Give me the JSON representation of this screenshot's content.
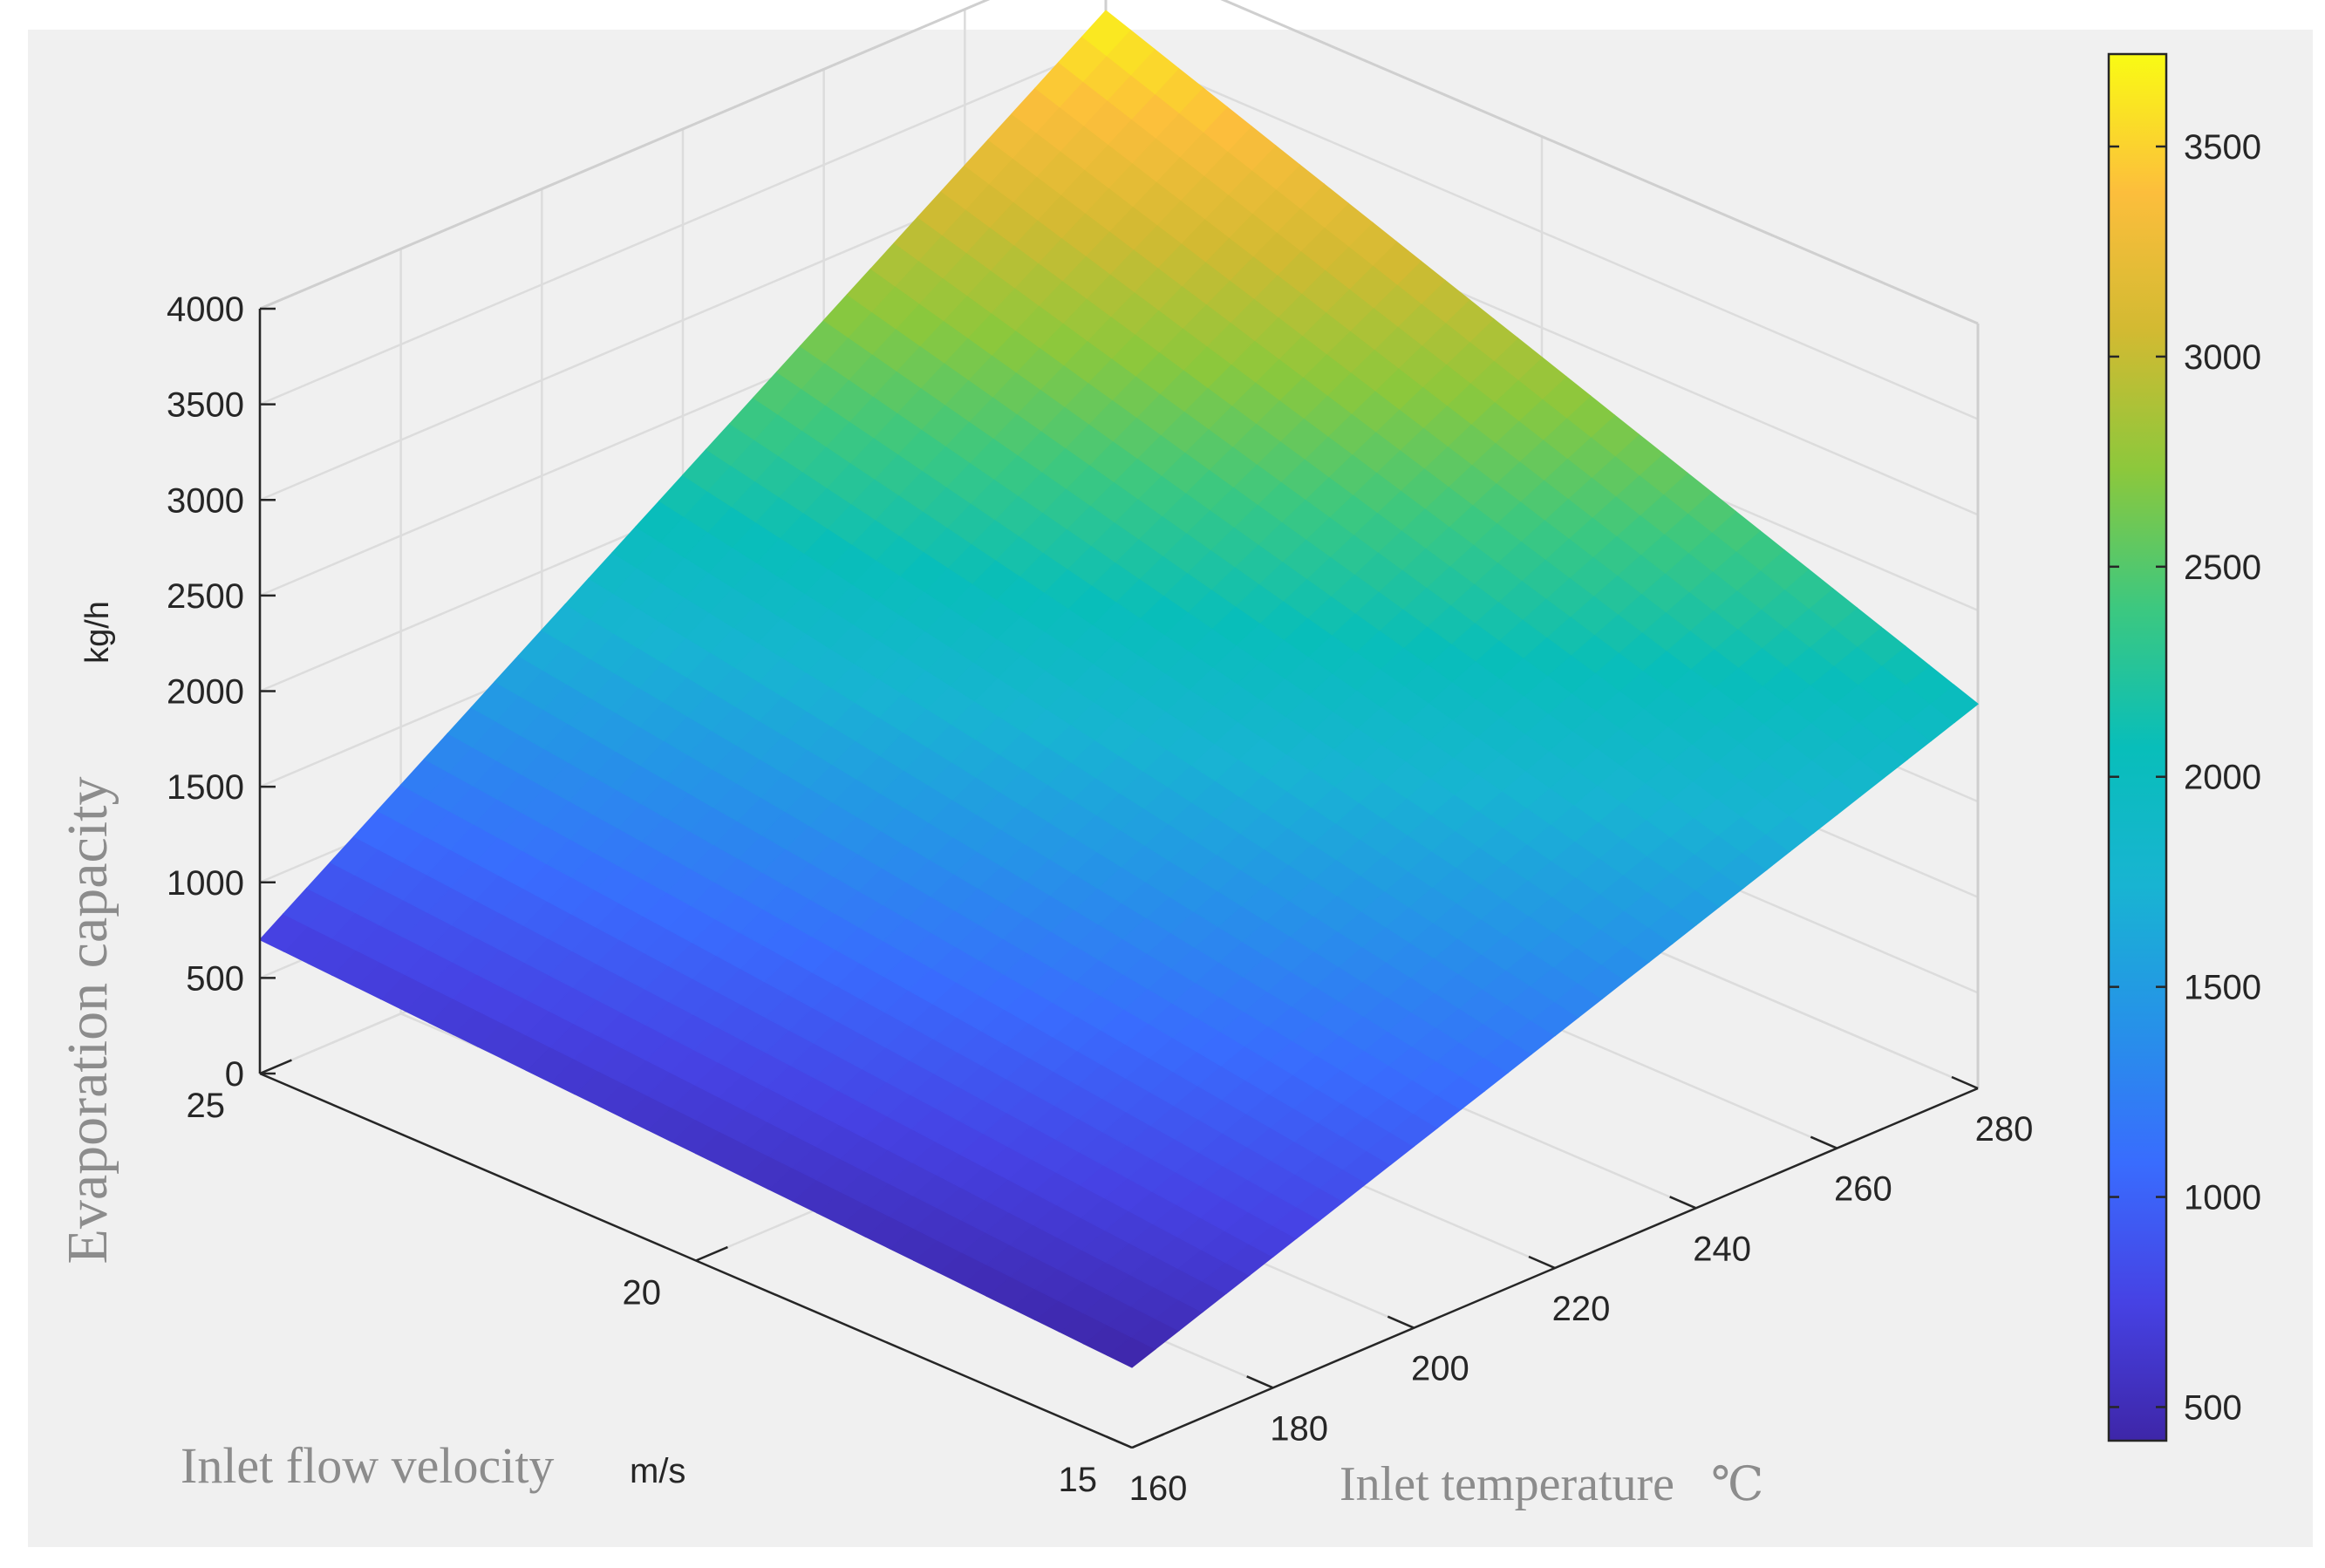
{
  "chart_data": {
    "type": "surface",
    "title": "",
    "xlabel": "Inlet temperature",
    "xlabel_unit": "℃",
    "ylabel": "Inlet flow velocity",
    "ylabel_unit": "m/s",
    "zlabel": "Evaporation capacity",
    "zlabel_unit": "kg/h",
    "x_ticks": [
      "160",
      "180",
      "200",
      "220",
      "240",
      "260",
      "280"
    ],
    "y_ticks": [
      "15",
      "20",
      "25"
    ],
    "z_ticks": [
      "0",
      "500",
      "1000",
      "1500",
      "2000",
      "2500",
      "3000",
      "3500",
      "4000"
    ],
    "xlim": [
      160,
      280
    ],
    "ylim": [
      15,
      25
    ],
    "zlim": [
      0,
      4000
    ],
    "surface_corners": [
      {
        "x": 160,
        "y": 15,
        "z": 420
      },
      {
        "x": 160,
        "y": 25,
        "z": 700
      },
      {
        "x": 280,
        "y": 15,
        "z": 2010
      },
      {
        "x": 280,
        "y": 25,
        "z": 3680
      }
    ],
    "colorbar": {
      "colormap": "parula",
      "min": 420,
      "max": 3720,
      "ticks": [
        "500",
        "1000",
        "1500",
        "2000",
        "2500",
        "3000",
        "3500"
      ]
    },
    "grid": true
  }
}
